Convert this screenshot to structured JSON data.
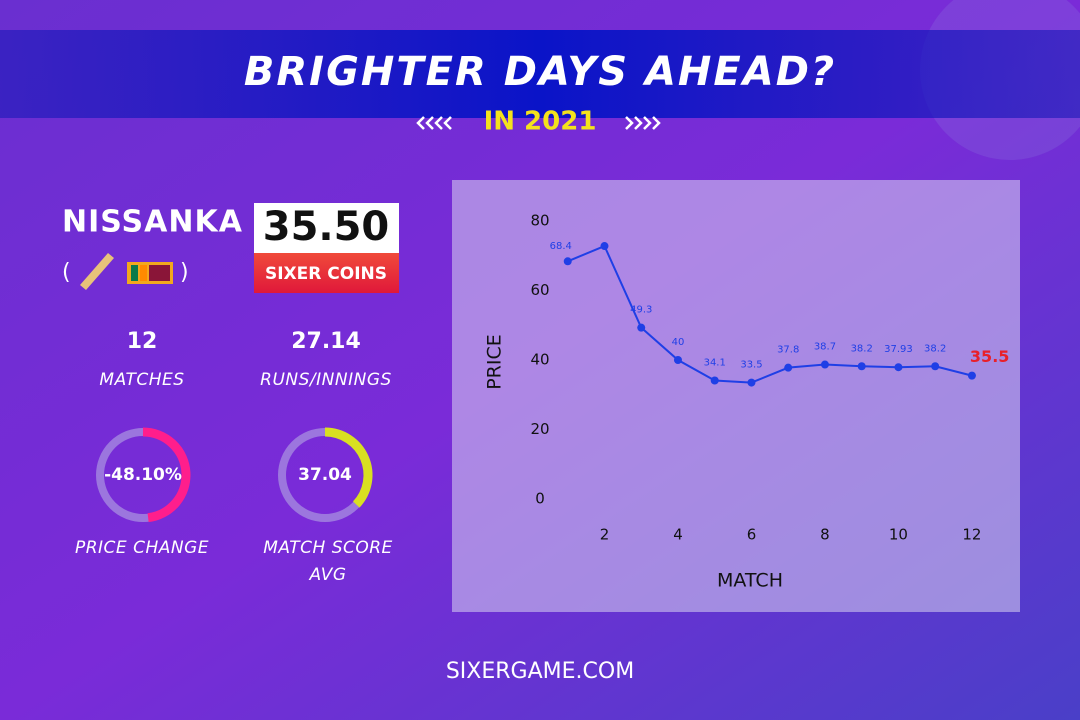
{
  "header": {
    "title": "BRIGHTER DAYS AHEAD?",
    "subtitle": "IN 2021"
  },
  "player": {
    "name": "NISSANKA",
    "price": "35.50",
    "price_unit": "SIXER COINS"
  },
  "stats": [
    {
      "value": 12,
      "caption": "MATCHES"
    },
    {
      "value": 27.14,
      "caption": "RUNS/INNINGS"
    }
  ],
  "gauges": [
    {
      "value": -48.1,
      "label": "-48.10%",
      "caption": [
        "PRICE CHANGE"
      ],
      "color": "#ff1e8c",
      "max": 100
    },
    {
      "value": 37.04,
      "label": "37.04",
      "caption": [
        "MATCH SCORE",
        "AVG"
      ],
      "color": "#d9e021",
      "max": 100
    }
  ],
  "chart_data": {
    "type": "line",
    "x_label": "MATCH",
    "y_label": "PRICE",
    "x": [
      1,
      2,
      3,
      4,
      5,
      6,
      7,
      8,
      9,
      10,
      11,
      12
    ],
    "values": [
      68.4,
      72.8,
      49.3,
      40,
      34.1,
      33.5,
      37.8,
      38.7,
      38.2,
      37.93,
      38.2,
      35.5
    ],
    "value_labels": [
      "68.4",
      null,
      "49.3",
      "40",
      "34.1",
      "33.5",
      "37.8",
      "38.7",
      "38.2",
      "37.93",
      "38.2",
      "35.5"
    ],
    "color": "#1f3fe6",
    "last_label_color": "#e8202a",
    "xlim": [
      0,
      12.9
    ],
    "xticks": [
      2,
      4,
      6,
      8,
      10,
      12
    ],
    "ylim": [
      0,
      80
    ],
    "yticks": [
      0,
      20,
      40,
      60,
      80
    ]
  },
  "footer": "SIXERGAME.COM"
}
